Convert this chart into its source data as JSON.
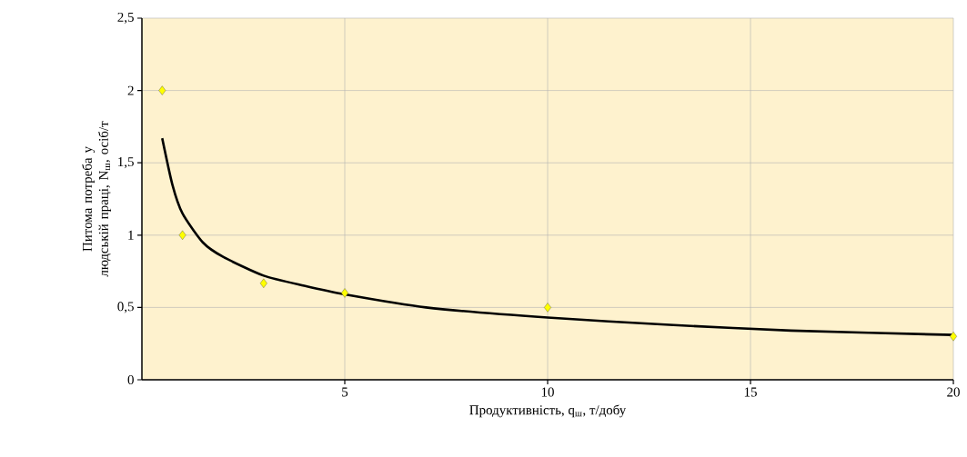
{
  "chart_data": {
    "type": "scatter",
    "xlabel": "Продуктивність, q$_{ш}$, т/добу",
    "ylabel": "Питома потреба у людській праці, N$_{ш}$, осіб/т",
    "xlim": [
      0,
      20
    ],
    "ylim": [
      0,
      2.5
    ],
    "xticks": [
      5,
      10,
      15,
      20
    ],
    "yticks": [
      0,
      {
        "value": 0.5,
        "label": "0,5"
      },
      1,
      {
        "value": 1.5,
        "label": "1,5"
      },
      2,
      {
        "value": 2.5,
        "label": "2,5"
      }
    ],
    "grid": true,
    "series": [
      {
        "color": "#ffff00",
        "marker": "diamond",
        "x": [
          0.5,
          1,
          3,
          5,
          10,
          20
        ],
        "values": [
          2,
          1,
          0.667,
          0.6,
          0.5,
          0.3
        ]
      },
      {
        "type": "line",
        "color": "#000000",
        "marker": "none",
        "x": [
          0.5,
          0.75,
          1,
          1.5,
          2,
          3,
          4,
          5,
          7,
          10,
          13,
          16,
          20
        ],
        "values": [
          1.67,
          1.35,
          1.15,
          0.95,
          0.85,
          0.72,
          0.65,
          0.59,
          0.5,
          0.43,
          0.38,
          0.34,
          0.31
        ]
      }
    ]
  }
}
